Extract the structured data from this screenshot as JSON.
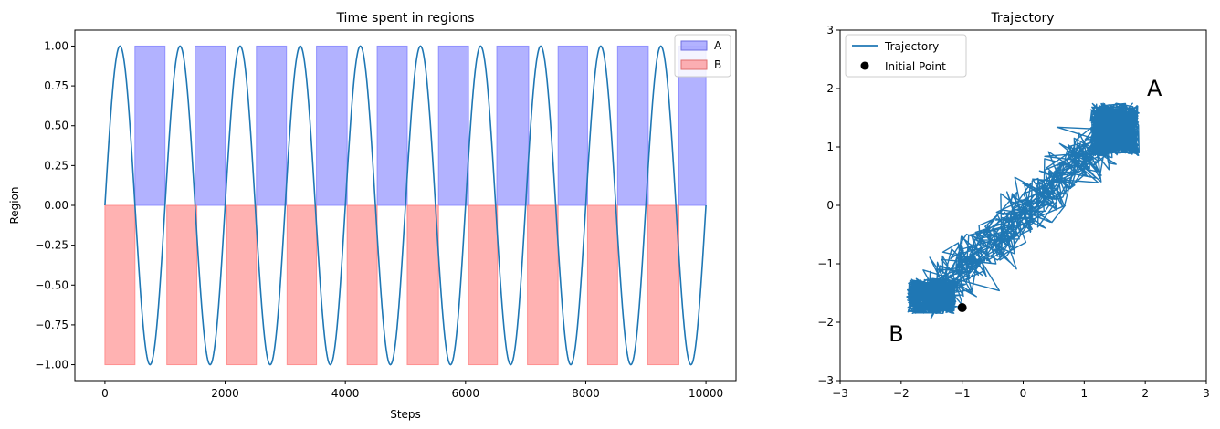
{
  "chart_data": [
    {
      "type": "area",
      "title": "Time spent in regions",
      "xlabel": "Steps",
      "ylabel": "Region",
      "xlim": [
        -500,
        10500
      ],
      "ylim": [
        -1.1,
        1.1
      ],
      "xticks": [
        0,
        2000,
        4000,
        6000,
        8000,
        10000
      ],
      "xtick_labels": [
        "0",
        "2000",
        "4000",
        "6000",
        "8000",
        "10000"
      ],
      "yticks": [
        1.0,
        0.75,
        0.5,
        0.25,
        0.0,
        -0.25,
        -0.5,
        -0.75,
        -1.0
      ],
      "ytick_labels": [
        "1.00",
        "0.75",
        "0.50",
        "0.25",
        "0.00",
        "−0.25",
        "−0.50",
        "−0.75",
        "−1.00"
      ],
      "legend": {
        "placement": "top-right",
        "entries": [
          "A",
          "B"
        ]
      },
      "series": [
        {
          "name": "A",
          "color": "#7f7fff",
          "value": 1.0,
          "intervals": [
            [
              500,
              1000
            ],
            [
              1500,
              2000
            ],
            [
              2520,
              3020
            ],
            [
              3520,
              4030
            ],
            [
              4530,
              5030
            ],
            [
              5550,
              6050
            ],
            [
              6520,
              7050
            ],
            [
              7540,
              8030
            ],
            [
              8530,
              9040
            ],
            [
              9550,
              10000
            ]
          ]
        },
        {
          "name": "B",
          "color": "#ff7f7f",
          "value": -1.0,
          "intervals": [
            [
              0,
              500
            ],
            [
              1030,
              1530
            ],
            [
              2030,
              2520
            ],
            [
              3030,
              3520
            ],
            [
              4030,
              4530
            ],
            [
              5030,
              5550
            ],
            [
              6050,
              6530
            ],
            [
              7030,
              7540
            ],
            [
              8030,
              8530
            ],
            [
              9030,
              9550
            ]
          ]
        }
      ],
      "signal": {
        "type": "sine",
        "amplitude": 1.0,
        "period": 1000,
        "range": [
          0,
          10000
        ],
        "color": "#1f77b4"
      }
    },
    {
      "type": "line",
      "title": "Trajectory",
      "xlim": [
        -3,
        3
      ],
      "ylim": [
        -3,
        3
      ],
      "xticks": [
        -3,
        -2,
        -1,
        0,
        1,
        2,
        3
      ],
      "xtick_labels": [
        "−3",
        "−2",
        "−1",
        "0",
        "1",
        "2",
        "3"
      ],
      "yticks": [
        3,
        2,
        1,
        0,
        -1,
        -2,
        -3
      ],
      "ytick_labels": [
        "3",
        "2",
        "1",
        "0",
        "−1",
        "−2",
        "−3"
      ],
      "legend": {
        "placement": "top-left",
        "entries": [
          "Trajectory",
          "Initial Point"
        ]
      },
      "series": [
        {
          "name": "Trajectory",
          "color": "#1f77b4",
          "regions": [
            {
              "center": [
                1.5,
                1.3
              ],
              "spread": [
                0.4,
                0.45
              ]
            },
            {
              "center": [
                -1.5,
                -1.55
              ],
              "spread": [
                0.4,
                0.3
              ]
            }
          ],
          "transition_band": {
            "from": [
              -1.6,
              -1.4
            ],
            "to": [
              1.6,
              1.5
            ],
            "width": 0.6
          }
        },
        {
          "name": "Initial Point",
          "color": "#000000",
          "x": [
            -1.0
          ],
          "y": [
            -1.75
          ]
        }
      ],
      "annotations": [
        {
          "text": "A",
          "x": 2.0,
          "y": 2.0
        },
        {
          "text": "B",
          "x": -2.2,
          "y": -2.2
        }
      ]
    }
  ]
}
